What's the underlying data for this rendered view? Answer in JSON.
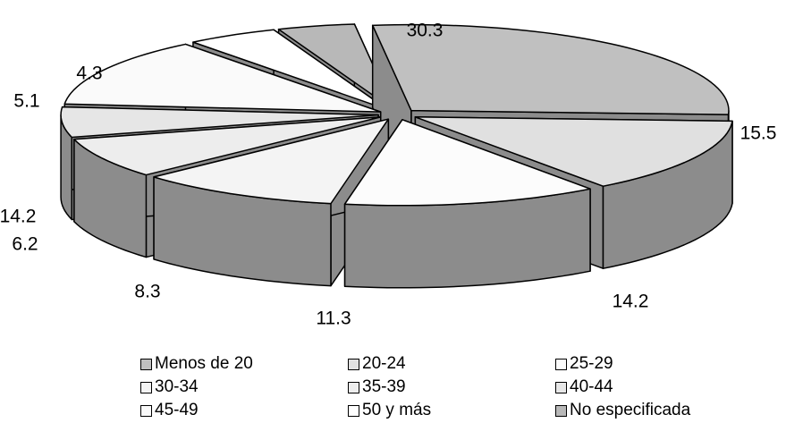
{
  "chart_data": {
    "type": "pie",
    "style": "3d-exploded",
    "legend_position": "bottom",
    "slices": [
      {
        "label": "Menos de 20",
        "value": 30.3,
        "value_label": "30.3",
        "color": "#c0c0c0"
      },
      {
        "label": "20-24",
        "value": 15.5,
        "value_label": "15.5",
        "color": "#e0e0e0"
      },
      {
        "label": "25-29",
        "value": 14.2,
        "value_label": "14.2",
        "color": "#fcfcfc"
      },
      {
        "label": "30-34",
        "value": 11.3,
        "value_label": "11.3",
        "color": "#f4f4f4"
      },
      {
        "label": "35-39",
        "value": 8.3,
        "value_label": "8.3",
        "color": "#ededed"
      },
      {
        "label": "40-44",
        "value": 6.2,
        "value_label": "6.2",
        "color": "#e6e6e6"
      },
      {
        "label": "45-49",
        "value": 14.2,
        "value_label": "14.2",
        "color": "#fafafa"
      },
      {
        "label": "50 y más",
        "value": 5.1,
        "value_label": "5.1",
        "color": "#ffffff"
      },
      {
        "label": "No especificada",
        "value": 4.3,
        "value_label": "4.3",
        "color": "#b8b8b8"
      }
    ],
    "side_color": "#8c8c8c"
  }
}
